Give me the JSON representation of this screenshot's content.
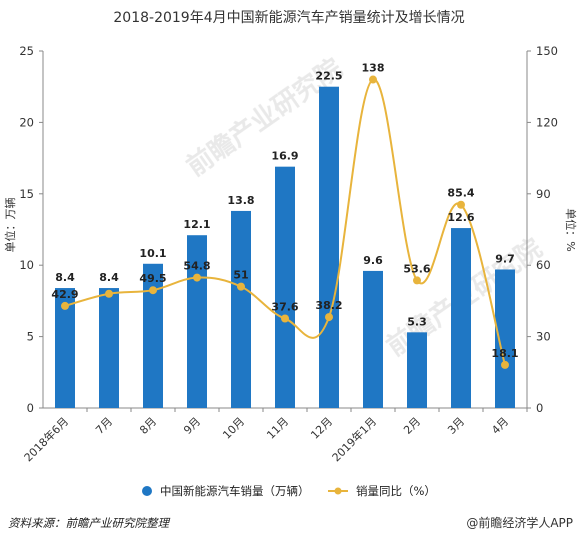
{
  "chart_data": {
    "type": "bar",
    "title": "2018-2019年4月中国新能源汽车产销量统计及增长情况",
    "categories": [
      "2018年6月",
      "7月",
      "8月",
      "9月",
      "10月",
      "11月",
      "12月",
      "2019年1月",
      "2月",
      "3月",
      "4月"
    ],
    "series": [
      {
        "name": "中国新能源汽车销量（万辆）",
        "type": "bar",
        "axis": "left",
        "color": "#1f77c4",
        "values": [
          8.4,
          8.4,
          10.1,
          12.1,
          13.8,
          16.9,
          22.5,
          9.6,
          5.3,
          12.6,
          9.7
        ]
      },
      {
        "name": "销量同比（%）",
        "type": "line",
        "axis": "right",
        "color": "#e8b43c",
        "values": [
          42.9,
          48,
          49.5,
          54.8,
          51,
          37.6,
          38.2,
          138,
          53.6,
          85.4,
          18.1
        ],
        "labels": [
          "42.9",
          "",
          "49.5",
          "54.8",
          "51",
          "37.6",
          "38.2",
          "138",
          "53.6",
          "85.4",
          "18.1"
        ]
      }
    ],
    "ylabel_left": "单位：万辆",
    "ylabel_right": "单位：%",
    "ylim_left": [
      0,
      25
    ],
    "yticks_left": [
      0,
      5,
      10,
      15,
      20,
      25
    ],
    "ylim_right": [
      0,
      150
    ],
    "yticks_right": [
      0,
      30,
      60,
      90,
      120,
      150
    ],
    "grid": false,
    "legend": "bottom"
  },
  "watermark": "前瞻产业研究院",
  "footer": {
    "source": "资料来源：前瞻产业研究院整理",
    "brand": "@前瞻经济学人APP"
  }
}
